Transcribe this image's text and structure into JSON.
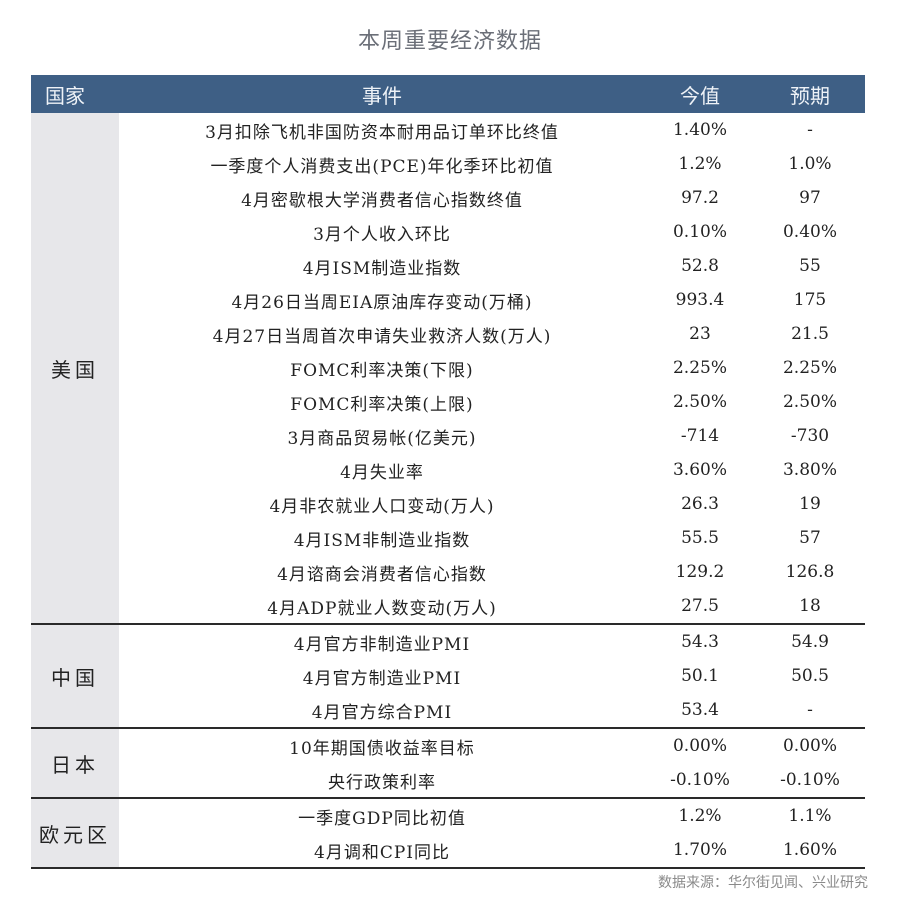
{
  "title": "本周重要经济数据",
  "header": {
    "country": "国家",
    "event": "事件",
    "now": "今值",
    "expected": "预期"
  },
  "colors": {
    "header_bg": "#3e5f85",
    "country_bg": "#e7e7ea",
    "title": "#6b6f78"
  },
  "groups": [
    {
      "country": "美国",
      "rows": [
        {
          "event": "3月扣除飞机非国防资本耐用品订单环比终值",
          "now": "1.40%",
          "expected": "-"
        },
        {
          "event": "一季度个人消费支出(PCE)年化季环比初值",
          "now": "1.2%",
          "expected": "1.0%"
        },
        {
          "event": "4月密歇根大学消费者信心指数终值",
          "now": "97.2",
          "expected": "97"
        },
        {
          "event": "3月个人收入环比",
          "now": "0.10%",
          "expected": "0.40%"
        },
        {
          "event": "4月ISM制造业指数",
          "now": "52.8",
          "expected": "55"
        },
        {
          "event": "4月26日当周EIA原油库存变动(万桶)",
          "now": "993.4",
          "expected": "175"
        },
        {
          "event": "4月27日当周首次申请失业救济人数(万人)",
          "now": "23",
          "expected": "21.5"
        },
        {
          "event": "FOMC利率决策(下限)",
          "now": "2.25%",
          "expected": "2.25%"
        },
        {
          "event": "FOMC利率决策(上限)",
          "now": "2.50%",
          "expected": "2.50%"
        },
        {
          "event": "3月商品贸易帐(亿美元)",
          "now": "-714",
          "expected": "-730"
        },
        {
          "event": "4月失业率",
          "now": "3.60%",
          "expected": "3.80%"
        },
        {
          "event": "4月非农就业人口变动(万人)",
          "now": "26.3",
          "expected": "19"
        },
        {
          "event": "4月ISM非制造业指数",
          "now": "55.5",
          "expected": "57"
        },
        {
          "event": "4月谘商会消费者信心指数",
          "now": "129.2",
          "expected": "126.8"
        },
        {
          "event": "4月ADP就业人数变动(万人)",
          "now": "27.5",
          "expected": "18"
        }
      ]
    },
    {
      "country": "中国",
      "rows": [
        {
          "event": "4月官方非制造业PMI",
          "now": "54.3",
          "expected": "54.9"
        },
        {
          "event": "4月官方制造业PMI",
          "now": "50.1",
          "expected": "50.5"
        },
        {
          "event": "4月官方综合PMI",
          "now": "53.4",
          "expected": "-"
        }
      ]
    },
    {
      "country": "日本",
      "rows": [
        {
          "event": "10年期国债收益率目标",
          "now": "0.00%",
          "expected": "0.00%"
        },
        {
          "event": "央行政策利率",
          "now": "-0.10%",
          "expected": "-0.10%"
        }
      ]
    },
    {
      "country": "欧元区",
      "rows": [
        {
          "event": "一季度GDP同比初值",
          "now": "1.2%",
          "expected": "1.1%"
        },
        {
          "event": "4月调和CPI同比",
          "now": "1.70%",
          "expected": "1.60%"
        }
      ]
    }
  ],
  "source": "数据来源：华尔街见闻、兴业研究"
}
